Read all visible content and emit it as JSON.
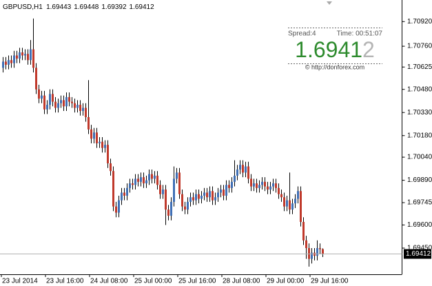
{
  "chart_data": {
    "type": "candlestick",
    "symbol": "GBPUSD,H1",
    "categories": [
      "23 Jul 2014",
      null,
      null,
      null,
      null,
      null,
      null,
      null,
      null,
      null,
      null,
      null,
      null,
      null,
      null,
      null,
      "23 Jul 16:00",
      null,
      null,
      null,
      null,
      null,
      null,
      null,
      null,
      null,
      null,
      null,
      null,
      null,
      null,
      null,
      "24 Jul 08:00",
      null,
      null,
      null,
      null,
      null,
      null,
      null,
      null,
      null,
      null,
      null,
      null,
      null,
      null,
      null,
      "25 Jul 00:00",
      null,
      null,
      null,
      null,
      null,
      null,
      null,
      null,
      null,
      null,
      null,
      null,
      null,
      null,
      null,
      "25 Jul 16:00",
      null,
      null,
      null,
      null,
      null,
      null,
      null,
      null,
      null,
      null,
      null,
      null,
      null,
      null,
      null,
      "28 Jul 08:00",
      null,
      null,
      null,
      null,
      null,
      null,
      null,
      null,
      null,
      null,
      null,
      null,
      null,
      null,
      null,
      "29 Jul 00:00",
      null,
      null,
      null,
      null,
      null,
      null,
      null,
      null,
      null,
      null,
      null,
      null,
      null,
      null,
      null,
      "29 Jul 16:00",
      null,
      null,
      null,
      null
    ],
    "open": [
      1.7062,
      1.7066,
      1.7064,
      1.7067,
      1.7065,
      1.707,
      1.7068,
      1.7072,
      1.707,
      1.7071,
      1.7067,
      1.7074,
      1.7062,
      1.7048,
      1.7042,
      1.7044,
      1.7035,
      1.7038,
      1.7045,
      1.704,
      1.7036,
      1.7039,
      1.7041,
      1.7037,
      1.7043,
      1.704,
      1.7039,
      1.7036,
      1.7038,
      1.7034,
      1.7036,
      1.703,
      1.7022,
      1.7016,
      1.702,
      1.7013,
      1.7014,
      1.701,
      1.7012,
      1.7,
      1.6995,
      1.6972,
      1.6968,
      1.6976,
      1.6981,
      1.6979,
      1.6984,
      1.6987,
      1.6986,
      1.699,
      1.6988,
      1.6991,
      1.6987,
      1.6989,
      1.6993,
      1.699,
      1.6992,
      1.6986,
      1.698,
      1.6983,
      1.697,
      1.6966,
      1.6975,
      1.699,
      1.6994,
      1.698,
      1.6972,
      1.697,
      1.6975,
      1.6978,
      1.6976,
      1.698,
      1.6977,
      1.6979,
      1.6981,
      1.6978,
      1.6982,
      1.6976,
      1.6978,
      1.6981,
      1.6983,
      1.6979,
      1.6986,
      1.6984,
      1.6988,
      1.6992,
      1.6996,
      1.6999,
      1.6994,
      1.6998,
      1.699,
      1.6985,
      1.6987,
      1.6984,
      1.6986,
      1.6988,
      1.6985,
      1.6983,
      1.6985,
      1.6987,
      1.6984,
      1.698,
      1.6978,
      1.6972,
      1.6976,
      1.697,
      1.6974,
      1.6977,
      1.6982,
      1.6962,
      1.695,
      1.6945,
      1.6938,
      1.6942,
      1.694,
      1.6945,
      1.69443
    ],
    "high": [
      1.7069,
      1.7069,
      1.707,
      1.707,
      1.7073,
      1.7073,
      1.7075,
      1.7075,
      1.7074,
      1.7074,
      1.708,
      1.7094,
      1.7065,
      1.7051,
      1.7047,
      1.7047,
      1.7041,
      1.7048,
      1.7048,
      1.7043,
      1.7042,
      1.7044,
      1.7044,
      1.7046,
      1.7046,
      1.7043,
      1.7042,
      1.7041,
      1.7041,
      1.7039,
      1.7039,
      1.7054,
      1.7025,
      1.7023,
      1.7023,
      1.7017,
      1.7017,
      1.7015,
      1.7015,
      1.7003,
      1.6998,
      1.6975,
      1.6979,
      1.6984,
      1.6984,
      1.6987,
      1.699,
      1.699,
      1.6993,
      1.6993,
      1.6994,
      1.6994,
      1.6992,
      1.6996,
      1.6996,
      1.6995,
      1.6995,
      1.6989,
      1.6986,
      1.6986,
      1.6973,
      1.6978,
      1.6998,
      1.6997,
      1.6997,
      1.6983,
      1.6975,
      1.6978,
      1.6981,
      1.6981,
      1.6983,
      1.6983,
      1.6982,
      1.6984,
      1.6984,
      1.6985,
      1.6985,
      1.6981,
      1.6984,
      1.6986,
      1.6986,
      1.6989,
      1.6989,
      1.6991,
      1.7002,
      1.6999,
      1.7002,
      1.7002,
      1.7001,
      1.7001,
      1.6993,
      1.699,
      1.699,
      1.6989,
      1.6991,
      1.6991,
      1.6988,
      1.6988,
      1.699,
      1.699,
      1.6987,
      1.6983,
      1.6981,
      1.6979,
      1.6994,
      1.6977,
      1.698,
      1.6985,
      1.6985,
      1.6965,
      1.6953,
      1.6948,
      1.6945,
      1.6945,
      1.695,
      1.6948,
      1.69448
    ],
    "low": [
      1.7059,
      1.7061,
      1.7061,
      1.7062,
      1.7062,
      1.7065,
      1.7065,
      1.7067,
      1.7067,
      1.7064,
      1.7064,
      1.7059,
      1.7045,
      1.7039,
      1.7039,
      1.7032,
      1.7032,
      1.7035,
      1.7037,
      1.7033,
      1.7033,
      1.7036,
      1.7034,
      1.7034,
      1.7037,
      1.7036,
      1.7033,
      1.7033,
      1.7031,
      1.7031,
      1.7027,
      1.7019,
      1.7013,
      1.7013,
      1.701,
      1.701,
      1.7007,
      1.7007,
      1.6997,
      1.6992,
      1.6969,
      1.6965,
      1.6965,
      1.6973,
      1.6976,
      1.6976,
      1.6981,
      1.6983,
      1.6983,
      1.6985,
      1.6985,
      1.6984,
      1.6984,
      1.6986,
      1.6987,
      1.6987,
      1.6983,
      1.6977,
      1.6977,
      1.696,
      1.6963,
      1.6963,
      1.6972,
      1.6987,
      1.6977,
      1.6969,
      1.6967,
      1.6967,
      1.6972,
      1.6973,
      1.6973,
      1.6974,
      1.6974,
      1.6976,
      1.6975,
      1.6975,
      1.6973,
      1.6973,
      1.6975,
      1.6978,
      1.6976,
      1.6976,
      1.6981,
      1.6981,
      1.6985,
      1.6989,
      1.6993,
      1.6991,
      1.6991,
      1.6987,
      1.6982,
      1.6982,
      1.6981,
      1.6981,
      1.6983,
      1.6982,
      1.698,
      1.698,
      1.6982,
      1.6981,
      1.6977,
      1.6975,
      1.6969,
      1.6969,
      1.6967,
      1.6967,
      1.6971,
      1.6974,
      1.6959,
      1.6947,
      1.6938,
      1.6933,
      1.6935,
      1.6937,
      1.6937,
      1.6941,
      1.69392
    ],
    "close": [
      1.7066,
      1.7064,
      1.7067,
      1.7065,
      1.707,
      1.7068,
      1.7072,
      1.707,
      1.7071,
      1.7067,
      1.7074,
      1.7062,
      1.7048,
      1.7042,
      1.7044,
      1.7035,
      1.7038,
      1.7045,
      1.704,
      1.7036,
      1.7039,
      1.7041,
      1.7037,
      1.7043,
      1.704,
      1.7039,
      1.7036,
      1.7038,
      1.7034,
      1.7036,
      1.703,
      1.7022,
      1.7016,
      1.702,
      1.7013,
      1.7014,
      1.701,
      1.7012,
      1.7,
      1.6995,
      1.6972,
      1.6968,
      1.6976,
      1.6981,
      1.6979,
      1.6984,
      1.6987,
      1.6986,
      1.699,
      1.6988,
      1.6991,
      1.6987,
      1.6989,
      1.6993,
      1.699,
      1.6992,
      1.6986,
      1.698,
      1.6983,
      1.697,
      1.6966,
      1.6975,
      1.699,
      1.6994,
      1.698,
      1.6972,
      1.697,
      1.6975,
      1.6978,
      1.6976,
      1.698,
      1.6977,
      1.6979,
      1.6981,
      1.6978,
      1.6982,
      1.6976,
      1.6978,
      1.6981,
      1.6983,
      1.6979,
      1.6986,
      1.6984,
      1.6988,
      1.6992,
      1.6996,
      1.6999,
      1.6994,
      1.6998,
      1.699,
      1.6985,
      1.6987,
      1.6984,
      1.6986,
      1.6988,
      1.6985,
      1.6983,
      1.6985,
      1.6987,
      1.6984,
      1.698,
      1.6978,
      1.6972,
      1.6976,
      1.697,
      1.6974,
      1.6977,
      1.6982,
      1.6962,
      1.695,
      1.6945,
      1.6938,
      1.6942,
      1.694,
      1.6945,
      1.69443,
      1.69412
    ],
    "up_color": "#3f6fb5",
    "down_color": "#c0392b",
    "wick_color": "#000000",
    "ylim": [
      1.6928,
      1.7106
    ],
    "yticks": [
      {
        "value": 1.6945,
        "label": "1.69450"
      },
      {
        "value": 1.696,
        "label": "1.69600"
      },
      1.69745,
      {
        "value": 1.6989,
        "label": "1.69890"
      },
      {
        "value": 1.7004,
        "label": "1.70040"
      },
      {
        "value": 1.7018,
        "label": "1.70180"
      },
      {
        "value": 1.7033,
        "label": "1.70330"
      },
      {
        "value": 1.7048,
        "label": "1.70480"
      },
      1.70625,
      {
        "value": 1.7076,
        "label": "1.70760"
      },
      {
        "value": 1.7092,
        "label": "1.70920"
      }
    ],
    "current_price": 1.69412,
    "current_price_color": "#b0b0b0"
  },
  "widget": {
    "spread": "Spread:4",
    "time": "Time: 00:51:07",
    "price_main": "1.6941",
    "price_last_digit": "2",
    "link": "© http://donforex.com"
  }
}
